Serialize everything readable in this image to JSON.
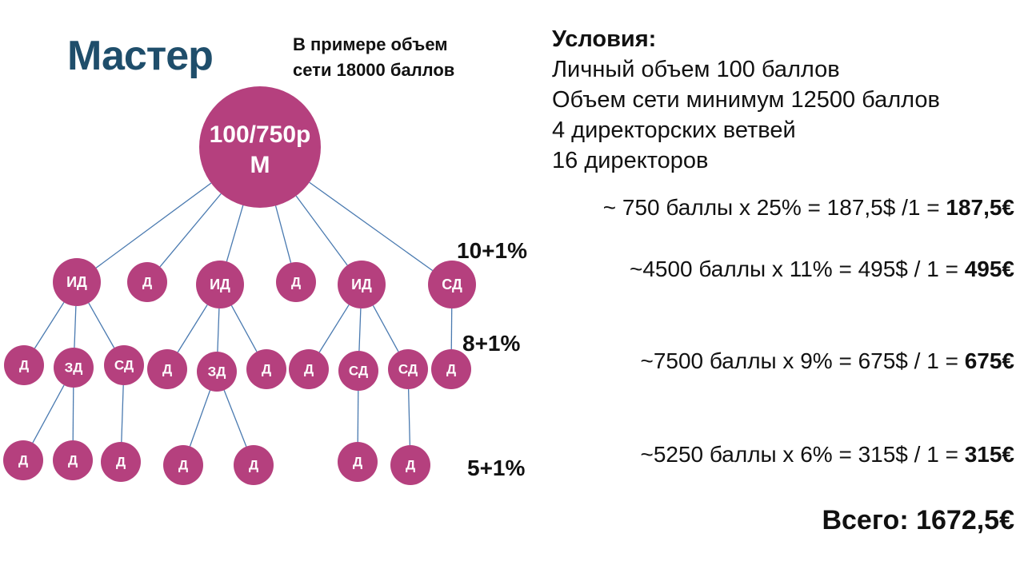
{
  "title": "Мастер",
  "example_note": [
    "В примере объем",
    "сети 18000 баллов"
  ],
  "conditions": {
    "heading": "Условия:",
    "items": [
      "Личный объем 100 баллов",
      "Объем сети минимум 12500 баллов",
      "4 директорских ветвей",
      "16 директоров"
    ]
  },
  "calculations": [
    {
      "text": "~ 750 баллы х 25% = 187,5$ /1 = ",
      "result": "187,5€"
    },
    {
      "text": "~4500 баллы х 11% = 495$ / 1 = ",
      "result": "495€"
    },
    {
      "text": "~7500 баллы х 9% = 675$ / 1 = ",
      "result": "675€"
    },
    {
      "text": "~5250 баллы х 6% = 315$ / 1 = ",
      "result": "315€"
    }
  ],
  "total": "Всего: 1672,5€",
  "levels": [
    "10+1%",
    "8+1%",
    "5+1%"
  ],
  "tree": {
    "node_color": "#b5407e",
    "line_color": "#4a7ab0",
    "root": {
      "line1": "100/750р",
      "line2": "М"
    },
    "nodes": [
      {
        "id": "n1",
        "label": "ИД",
        "parent": "root"
      },
      {
        "id": "n2",
        "label": "Д",
        "parent": "root"
      },
      {
        "id": "n3",
        "label": "ИД",
        "parent": "root"
      },
      {
        "id": "n4",
        "label": "Д",
        "parent": "root"
      },
      {
        "id": "n5",
        "label": "ИД",
        "parent": "root"
      },
      {
        "id": "n6",
        "label": "СД",
        "parent": "root"
      },
      {
        "id": "n7",
        "label": "Д",
        "parent": "n1"
      },
      {
        "id": "n8",
        "label": "ЗД",
        "parent": "n1"
      },
      {
        "id": "n9",
        "label": "СД",
        "parent": "n1"
      },
      {
        "id": "n10",
        "label": "Д",
        "parent": "n3"
      },
      {
        "id": "n11",
        "label": "ЗД",
        "parent": "n3"
      },
      {
        "id": "n12",
        "label": "Д",
        "parent": "n3"
      },
      {
        "id": "n13",
        "label": "Д",
        "parent": "n5"
      },
      {
        "id": "n14",
        "label": "СД",
        "parent": "n5"
      },
      {
        "id": "n15",
        "label": "СД",
        "parent": "n5"
      },
      {
        "id": "n16",
        "label": "Д",
        "parent": "n6"
      },
      {
        "id": "n17",
        "label": "Д",
        "parent": "n8"
      },
      {
        "id": "n18",
        "label": "Д",
        "parent": "n8"
      },
      {
        "id": "n19",
        "label": "Д",
        "parent": "n9"
      },
      {
        "id": "n20",
        "label": "Д",
        "parent": "n11"
      },
      {
        "id": "n21",
        "label": "Д",
        "parent": "n11"
      },
      {
        "id": "n22",
        "label": "Д",
        "parent": "n14"
      },
      {
        "id": "n23",
        "label": "Д",
        "parent": "n15"
      }
    ]
  }
}
